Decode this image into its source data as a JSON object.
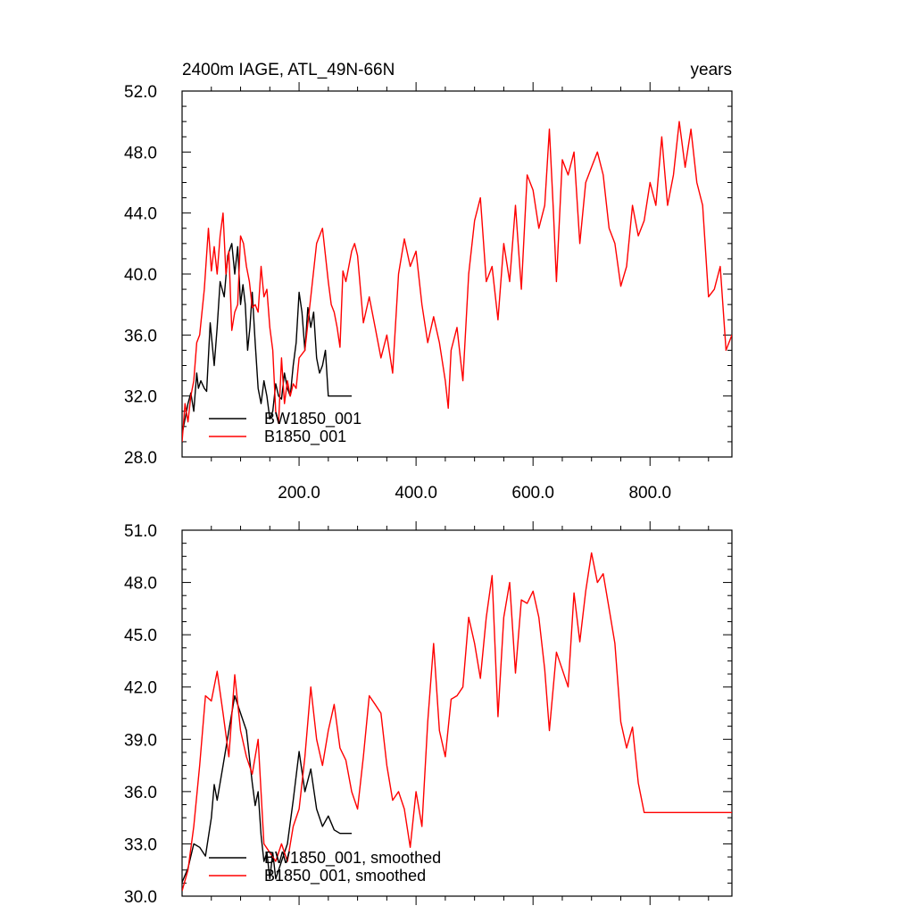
{
  "chart_data": [
    {
      "type": "line",
      "title": "2400m IAGE, ATL_49N-66N",
      "units": "years",
      "xlim": [
        0,
        940
      ],
      "ylim": [
        28,
        52
      ],
      "x_ticks": [
        200,
        400,
        600,
        800
      ],
      "x_tick_labels": [
        "200.0",
        "400.0",
        "600.0",
        "800.0"
      ],
      "y_ticks": [
        28,
        32,
        36,
        40,
        44,
        48,
        52
      ],
      "y_tick_labels": [
        "28.0",
        "32.0",
        "36.0",
        "40.0",
        "44.0",
        "48.0",
        "52.0"
      ],
      "legend_position": "bottom-left",
      "series": [
        {
          "name": "BW1850_001",
          "color": "#000000",
          "x": [
            0,
            10,
            15,
            20,
            25,
            28,
            32,
            38,
            42,
            48,
            55,
            60,
            65,
            72,
            78,
            85,
            90,
            95,
            100,
            104,
            108,
            112,
            116,
            120,
            125,
            130,
            135,
            140,
            145,
            150,
            155,
            160,
            165,
            170,
            175,
            180,
            185,
            190,
            195,
            200,
            205,
            210,
            215,
            220,
            225,
            230,
            235,
            240,
            245,
            250,
            255,
            260,
            265,
            270,
            275,
            280,
            285,
            290
          ],
          "values": [
            29.5,
            31.5,
            32.2,
            31.0,
            33.5,
            32.5,
            33.0,
            32.5,
            32.3,
            36.8,
            34.0,
            36.5,
            39.5,
            38.5,
            41.2,
            42.0,
            40.0,
            41.8,
            38.0,
            39.3,
            38.0,
            35.0,
            36.5,
            38.8,
            35.5,
            32.5,
            31.5,
            33.0,
            32.0,
            30.5,
            31.0,
            32.8,
            32.0,
            31.8,
            33.5,
            32.5,
            32.0,
            34.0,
            35.5,
            38.8,
            37.5,
            35.0,
            37.8,
            36.5,
            37.5,
            34.5,
            33.5,
            34.0,
            35.0,
            32.0,
            32.0,
            32.0,
            32.0,
            32.0,
            32.0,
            32.0,
            32.0,
            32.0
          ]
        },
        {
          "name": "B1850_001",
          "color": "#ff0000",
          "x": [
            0,
            5,
            10,
            15,
            20,
            25,
            30,
            38,
            45,
            50,
            55,
            60,
            65,
            70,
            75,
            80,
            85,
            90,
            95,
            100,
            105,
            110,
            115,
            120,
            125,
            130,
            135,
            140,
            145,
            150,
            155,
            160,
            165,
            170,
            175,
            180,
            185,
            190,
            195,
            200,
            210,
            220,
            230,
            240,
            250,
            255,
            260,
            265,
            270,
            275,
            280,
            285,
            290,
            295,
            300,
            310,
            320,
            330,
            340,
            350,
            360,
            370,
            380,
            390,
            400,
            410,
            420,
            430,
            440,
            450,
            455,
            460,
            470,
            480,
            490,
            500,
            510,
            520,
            530,
            540,
            550,
            560,
            570,
            580,
            590,
            600,
            610,
            620,
            628,
            635,
            640,
            650,
            660,
            670,
            680,
            690,
            700,
            710,
            720,
            730,
            740,
            750,
            760,
            770,
            780,
            790,
            800,
            810,
            820,
            830,
            840,
            850,
            860,
            870,
            880,
            890,
            900,
            910,
            920,
            930,
            940
          ],
          "values": [
            29.0,
            31.5,
            30.3,
            32.0,
            33.0,
            35.5,
            36.0,
            39.0,
            43.0,
            40.2,
            41.8,
            40.0,
            42.5,
            44.0,
            40.0,
            41.5,
            36.3,
            37.5,
            38.0,
            42.5,
            42.0,
            40.5,
            39.5,
            37.8,
            38.0,
            37.5,
            40.5,
            38.5,
            39.0,
            36.5,
            35.0,
            31.0,
            30.2,
            34.5,
            31.5,
            33.0,
            32.0,
            32.8,
            32.5,
            34.5,
            35.0,
            38.5,
            42.0,
            43.0,
            39.5,
            38.0,
            37.5,
            36.5,
            35.2,
            40.2,
            39.5,
            40.5,
            41.5,
            42.0,
            41.2,
            36.8,
            38.5,
            36.5,
            34.5,
            36.0,
            33.5,
            40.0,
            42.3,
            40.5,
            41.5,
            38.0,
            35.5,
            37.2,
            35.5,
            33.0,
            31.2,
            35.0,
            36.5,
            33.0,
            40.0,
            43.5,
            45.0,
            39.5,
            40.5,
            37.0,
            42.0,
            39.5,
            44.5,
            39.0,
            46.5,
            45.5,
            43.0,
            44.5,
            49.5,
            44.0,
            39.5,
            47.5,
            46.5,
            48.0,
            42.0,
            46.0,
            47.0,
            48.0,
            46.5,
            43.0,
            42.0,
            39.2,
            40.5,
            44.5,
            42.5,
            43.5,
            46.0,
            44.5,
            49.0,
            44.5,
            46.5,
            50.0,
            47.0,
            49.5,
            46.0,
            44.5,
            38.5,
            39.0,
            40.5,
            35.0,
            36.0
          ]
        }
      ]
    },
    {
      "type": "line",
      "xlim": [
        0,
        940
      ],
      "ylim": [
        30,
        51
      ],
      "y_ticks": [
        30,
        33,
        36,
        39,
        42,
        45,
        48,
        51
      ],
      "y_tick_labels": [
        "30.0",
        "33.0",
        "36.0",
        "39.0",
        "42.0",
        "45.0",
        "48.0",
        "51.0"
      ],
      "legend_position": "bottom-left",
      "series": [
        {
          "name": "BW1850_001, smoothed",
          "color": "#000000",
          "x": [
            0,
            10,
            20,
            30,
            40,
            50,
            55,
            60,
            70,
            80,
            90,
            100,
            110,
            120,
            125,
            130,
            135,
            140,
            145,
            150,
            155,
            160,
            170,
            180,
            190,
            200,
            210,
            220,
            230,
            240,
            250,
            260,
            270,
            280,
            290
          ],
          "values": [
            30.8,
            31.6,
            33.0,
            32.8,
            32.3,
            34.5,
            36.4,
            35.5,
            37.5,
            39.5,
            41.5,
            40.5,
            39.5,
            36.5,
            35.2,
            36.0,
            33.5,
            32.0,
            32.5,
            31.0,
            32.5,
            31.0,
            32.0,
            33.0,
            35.5,
            38.3,
            36.0,
            37.3,
            35.0,
            34.0,
            34.6,
            33.8,
            33.6,
            33.6,
            33.6
          ]
        },
        {
          "name": "B1850_001, smoothed",
          "color": "#ff0000",
          "x": [
            0,
            10,
            20,
            30,
            40,
            50,
            60,
            70,
            80,
            90,
            100,
            110,
            120,
            130,
            140,
            150,
            160,
            170,
            180,
            190,
            200,
            210,
            220,
            230,
            240,
            250,
            260,
            270,
            280,
            290,
            300,
            310,
            320,
            330,
            340,
            350,
            360,
            370,
            380,
            390,
            400,
            410,
            420,
            430,
            440,
            450,
            460,
            470,
            480,
            490,
            500,
            510,
            520,
            530,
            540,
            550,
            560,
            570,
            580,
            590,
            600,
            610,
            620,
            628,
            640,
            650,
            660,
            670,
            680,
            690,
            700,
            710,
            720,
            730,
            740,
            750,
            760,
            770,
            780,
            790,
            800,
            810,
            820,
            830,
            840,
            850,
            860,
            870,
            880,
            890,
            900,
            910,
            920,
            930,
            940
          ],
          "values": [
            30.3,
            31.5,
            34.0,
            37.5,
            41.5,
            41.2,
            42.9,
            40.5,
            38.0,
            42.7,
            39.5,
            38.0,
            37.0,
            39.0,
            33.0,
            32.5,
            32.0,
            33.0,
            32.0,
            34.0,
            35.0,
            38.0,
            42.0,
            39.0,
            37.5,
            39.5,
            41.0,
            38.5,
            37.8,
            36.0,
            35.0,
            38.0,
            41.5,
            41.0,
            40.5,
            37.5,
            35.5,
            36.0,
            35.0,
            32.8,
            36.0,
            34.0,
            40.0,
            44.5,
            39.5,
            38.0,
            41.3,
            41.5,
            42.0,
            46.0,
            44.5,
            42.5,
            46.0,
            48.4,
            40.3,
            46.0,
            48.0,
            42.8,
            47.0,
            46.8,
            47.5,
            46.0,
            43.0,
            39.5,
            44.0,
            43.0,
            42.0,
            47.4,
            44.6,
            47.5,
            49.7,
            48.0,
            48.5,
            46.5,
            44.5,
            40.0,
            38.5,
            39.7,
            36.5,
            34.8,
            34.8,
            34.8,
            34.8,
            34.8,
            34.8,
            34.8,
            34.8,
            34.8,
            34.8,
            34.8,
            34.8,
            34.8,
            34.8,
            34.8,
            34.8
          ]
        }
      ]
    }
  ]
}
